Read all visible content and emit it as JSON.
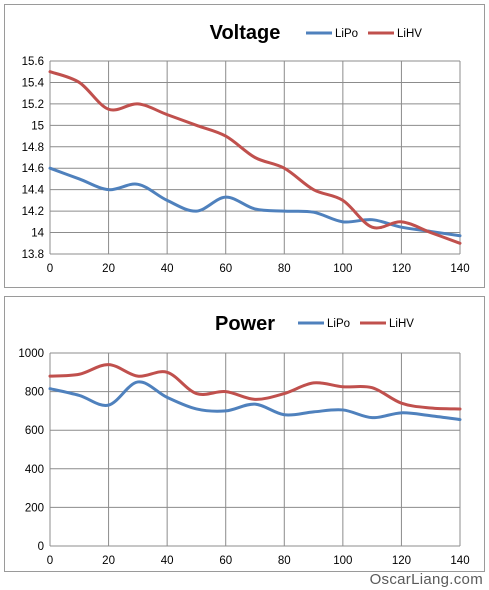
{
  "chart_data": [
    {
      "type": "line",
      "title": "Voltage",
      "xlabel": "",
      "ylabel": "",
      "x": [
        0,
        10,
        20,
        30,
        40,
        50,
        60,
        70,
        80,
        90,
        100,
        110,
        120,
        130,
        140
      ],
      "xlim": [
        0,
        140
      ],
      "ylim": [
        13.8,
        15.6
      ],
      "x_ticks": [
        "0",
        "20",
        "40",
        "60",
        "80",
        "100",
        "120",
        "140"
      ],
      "y_ticks": [
        "13.8",
        "14",
        "14.2",
        "14.4",
        "14.6",
        "14.8",
        "15",
        "15.2",
        "15.4",
        "15.6"
      ],
      "grid": true,
      "legend_position": "top-right",
      "series": [
        {
          "name": "LiPo",
          "color": "#4f81bd",
          "values": [
            14.6,
            14.5,
            14.4,
            14.45,
            14.3,
            14.2,
            14.33,
            14.22,
            14.2,
            14.19,
            14.1,
            14.12,
            14.05,
            14.01,
            13.97
          ]
        },
        {
          "name": "LiHV",
          "color": "#c0504d",
          "values": [
            15.5,
            15.4,
            15.15,
            15.2,
            15.1,
            15.0,
            14.9,
            14.7,
            14.6,
            14.4,
            14.3,
            14.05,
            14.1,
            14.0,
            13.9
          ]
        }
      ]
    },
    {
      "type": "line",
      "title": "Power",
      "xlabel": "",
      "ylabel": "",
      "x": [
        0,
        10,
        20,
        30,
        40,
        50,
        60,
        70,
        80,
        90,
        100,
        110,
        120,
        130,
        140
      ],
      "xlim": [
        0,
        140
      ],
      "ylim": [
        0,
        1000
      ],
      "x_ticks": [
        "0",
        "20",
        "40",
        "60",
        "80",
        "100",
        "120",
        "140"
      ],
      "y_ticks": [
        "0",
        "200",
        "400",
        "600",
        "800",
        "1000"
      ],
      "grid": true,
      "legend_position": "top-right",
      "series": [
        {
          "name": "LiPo",
          "color": "#4f81bd",
          "values": [
            815,
            780,
            730,
            850,
            770,
            710,
            700,
            735,
            680,
            695,
            705,
            665,
            690,
            675,
            655
          ]
        },
        {
          "name": "LiHV",
          "color": "#c0504d",
          "values": [
            880,
            890,
            940,
            880,
            900,
            790,
            800,
            760,
            790,
            845,
            825,
            820,
            740,
            715,
            710
          ]
        }
      ]
    }
  ],
  "watermark": "OscarLiang.com"
}
